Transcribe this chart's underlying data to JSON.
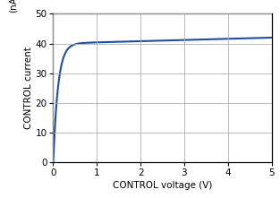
{
  "title": "",
  "xlabel": "CONTROL voltage (V)",
  "ylabel": "CONTROL current",
  "ylabel_unit": "(nA)",
  "xlim": [
    0,
    5
  ],
  "ylim": [
    0,
    50
  ],
  "xticks": [
    0,
    1,
    2,
    3,
    4,
    5
  ],
  "yticks": [
    0,
    10,
    20,
    30,
    40,
    50
  ],
  "line_color": "#1f4e9a",
  "line_width": 1.5,
  "background_color": "#ffffff",
  "grid_color": "#b0b0b0",
  "figsize": [
    3.13,
    2.21
  ],
  "dpi": 100,
  "curve_params": {
    "saturation": 40.0,
    "slope": 9.0,
    "v5_value": 42.0
  }
}
